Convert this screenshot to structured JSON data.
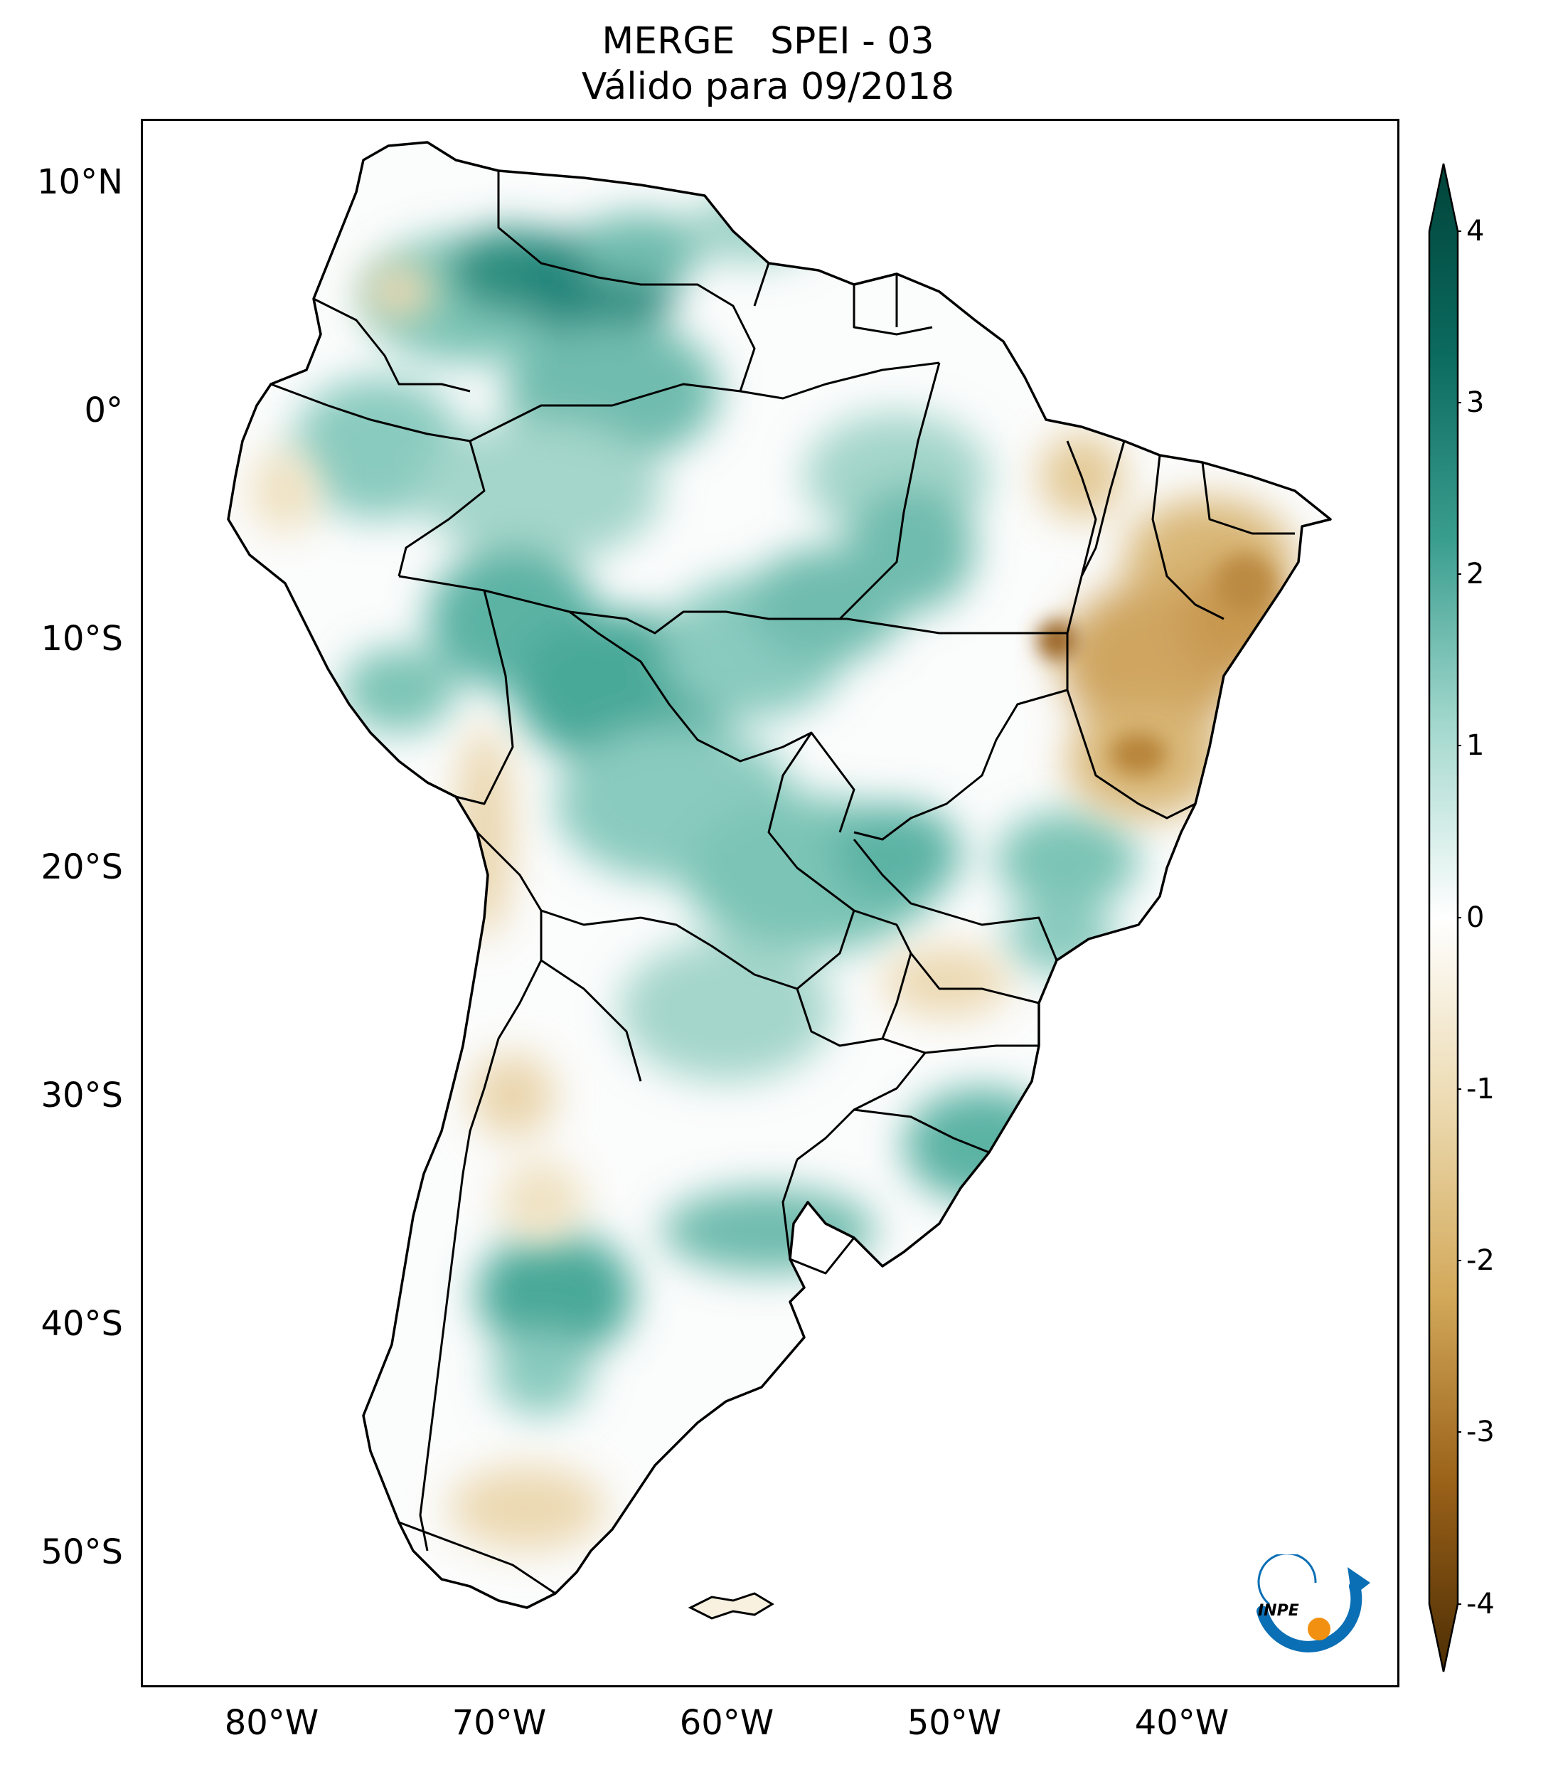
{
  "title": {
    "line1": "MERGE   SPEI - 03",
    "line2": "Válido para 09/2018"
  },
  "map": {
    "region": "South America",
    "lat_ticks": [
      "10°N",
      "0°",
      "10°S",
      "20°S",
      "30°S",
      "40°S",
      "50°S"
    ],
    "lon_ticks": [
      "80°W",
      "70°W",
      "60°W",
      "50°W",
      "40°W"
    ]
  },
  "colorbar": {
    "ticks": [
      "4",
      "3",
      "2",
      "1",
      "0",
      "-1",
      "-2",
      "-3",
      "-4"
    ],
    "range": [
      -4,
      4
    ],
    "extend": "both",
    "colors": {
      "high": "#01433a",
      "mid_high": "#3a9e8f",
      "zero": "#ffffff",
      "mid_low": "#d3a95a",
      "low": "#4d2e04"
    }
  },
  "logo": {
    "text": "INPE"
  }
}
